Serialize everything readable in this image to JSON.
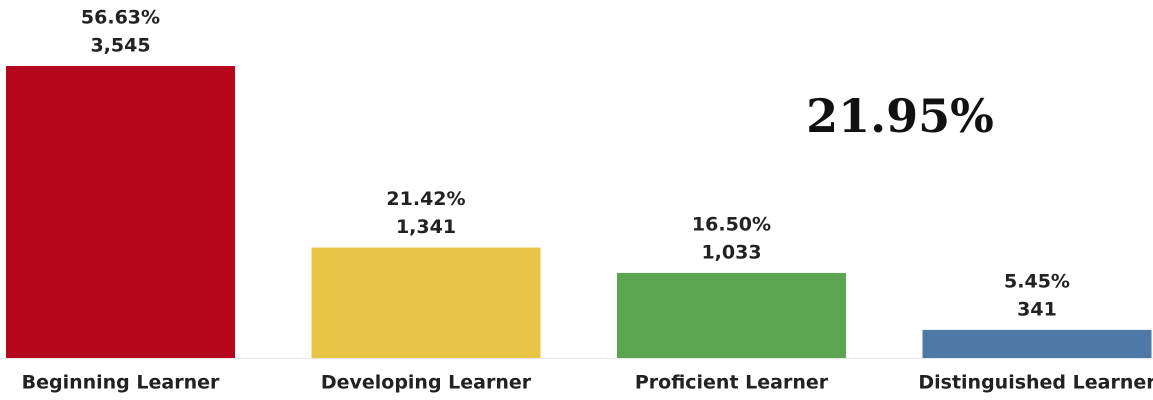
{
  "chart_data": {
    "type": "bar",
    "categories": [
      "Beginning Learner",
      "Developing Learner",
      "Proficient Learner",
      "Distinguished Learner"
    ],
    "values": [
      56.63,
      21.42,
      16.5,
      5.45
    ],
    "value_labels": [
      "56.63%",
      "21.42%",
      "16.50%",
      "5.45%"
    ],
    "counts": [
      3545,
      1341,
      1033,
      341
    ],
    "count_labels": [
      "3,545",
      "1,341",
      "1,033",
      "341"
    ],
    "colors": [
      "#b5081c",
      "#e8c547",
      "#5ba450",
      "#4e79a7"
    ],
    "annotation": "21.95%"
  }
}
